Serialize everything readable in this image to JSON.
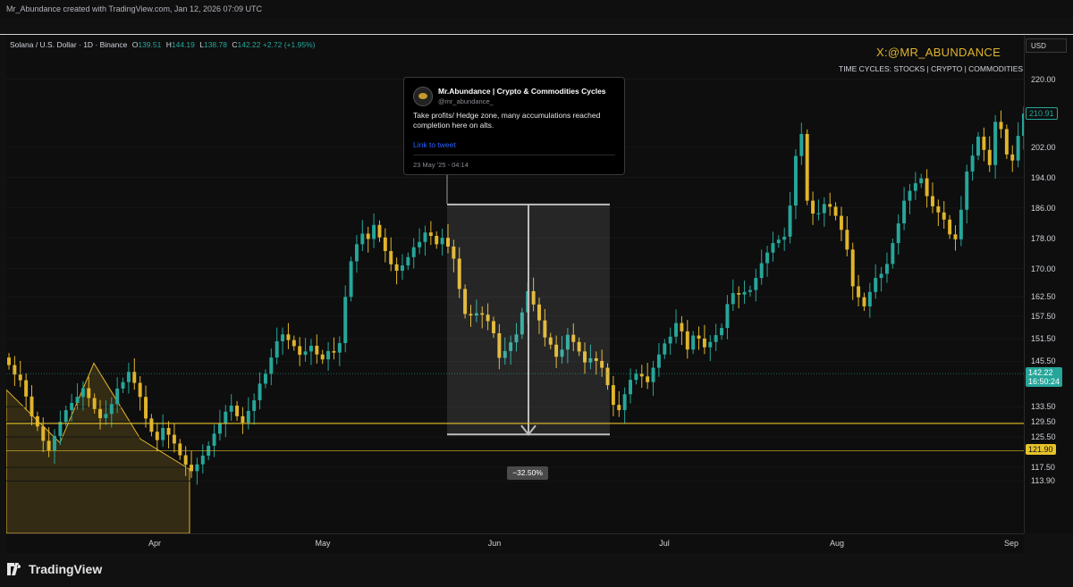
{
  "header": {
    "caption": "Mr_Abundance created with TradingView.com, Jan 12, 2026 07:09 UTC"
  },
  "legend": {
    "symbol": "Solana / U.S. Dollar · 1D · Binance",
    "o_label": "O",
    "o": "139.51",
    "h_label": "H",
    "h": "144.19",
    "l_label": "L",
    "l": "138.78",
    "c_label": "C",
    "c": "142.22",
    "change": "+2.72 (+1.95%)"
  },
  "branding": {
    "handle": "X:@MR_ABUNDANCE",
    "subtitle": "TIME CYCLES: STOCKS | CRYPTO | COMMODITIES"
  },
  "currency_button": "USD",
  "tweet": {
    "name": "Mr.Abundance | Crypto & Commodities Cycles",
    "handle": "@mr_abundance_",
    "text": "Take profits/ Hedge zone, many accumulations reached completion here on alts.",
    "link": "Link to tweet",
    "date": "23 May '25 - 04:14"
  },
  "measurement": {
    "label": "−32.50%"
  },
  "footer": {
    "brand": "TradingView"
  },
  "colors": {
    "up": "#26a69a",
    "down": "#e0b42c",
    "background": "#0e0e0e",
    "hline": "#e6c229"
  },
  "chart_data": {
    "type": "candlestick",
    "symbol": "SOLUSD",
    "interval": "1D",
    "x_labels": [
      "Apr",
      "May",
      "Jun",
      "Jul",
      "Aug",
      "Sep"
    ],
    "y_ticks": [
      "220.00",
      "202.00",
      "194.00",
      "186.00",
      "178.00",
      "170.00",
      "162.50",
      "157.50",
      "151.50",
      "145.50",
      "133.50",
      "129.50",
      "125.50",
      "117.50",
      "113.90"
    ],
    "ylim": [
      113.9,
      220.0
    ],
    "price_tags": [
      {
        "label": "210.91",
        "value": 210.91,
        "style": "outline"
      },
      {
        "label": "142.22",
        "sublabel": "16:50:24",
        "value": 142.22,
        "style": "filled"
      },
      {
        "label": "121.90",
        "value": 121.9,
        "style": "hline"
      }
    ],
    "horizontal_lines": [
      129.1,
      121.9
    ],
    "measure_zone": {
      "top": 186.9,
      "bottom": 126.2,
      "change": "−32.50%"
    },
    "closes": [
      144.5,
      142.0,
      140.5,
      136.2,
      131.0,
      128.3,
      124.5,
      122.0,
      125.8,
      129.5,
      132.6,
      134.5,
      136.1,
      138.4,
      135.8,
      132.9,
      130.5,
      131.6,
      134.2,
      138.3,
      140.0,
      142.7,
      139.8,
      136.1,
      130.4,
      126.9,
      124.7,
      127.9,
      126.1,
      123.8,
      120.7,
      118.2,
      116.5,
      118.3,
      120.6,
      123.2,
      126.4,
      129.1,
      132.2,
      133.8,
      131.0,
      129.3,
      132.4,
      135.2,
      139.6,
      142.2,
      146.5,
      150.8,
      152.6,
      151.1,
      149.5,
      147.2,
      148.1,
      149.6,
      147.3,
      146.0,
      148.2,
      147.8,
      150.3,
      162.5,
      171.9,
      176.4,
      179.2,
      177.8,
      181.5,
      178.2,
      174.6,
      171.1,
      169.4,
      170.8,
      173.0,
      175.6,
      177.0,
      179.5,
      178.6,
      176.4,
      178.1,
      175.8,
      172.6,
      164.6,
      158.0,
      157.6,
      158.2,
      157.8,
      156.1,
      152.9,
      146.4,
      148.2,
      150.5,
      152.6,
      158.4,
      164.0,
      160.5,
      156.3,
      151.8,
      149.9,
      146.7,
      148.6,
      152.5,
      150.6,
      148.1,
      145.2,
      146.3,
      145.6,
      143.8,
      139.2,
      134.0,
      132.6,
      136.8,
      140.6,
      142.2,
      141.5,
      140.0,
      143.8,
      147.3,
      150.2,
      152.0,
      155.6,
      153.4,
      148.6,
      152.3,
      151.5,
      149.2,
      150.6,
      152.4,
      154.3,
      160.6,
      163.5,
      163.1,
      163.8,
      164.3,
      167.5,
      171.4,
      174.2,
      176.7,
      177.6,
      178.4,
      186.6,
      199.7,
      205.5,
      187.9,
      184.5,
      184.6,
      187.0,
      186.3,
      183.9,
      180.2,
      175.0,
      165.3,
      162.4,
      160.0,
      163.8,
      167.5,
      168.6,
      171.2,
      176.7,
      181.9,
      187.9,
      190.5,
      192.5,
      193.8,
      189.1,
      186.4,
      184.8,
      182.9,
      179.0,
      177.7,
      185.5,
      195.6,
      199.8,
      204.8,
      201.3,
      197.3,
      208.7,
      206.8,
      200.1,
      198.5,
      205.0,
      210.91
    ]
  }
}
